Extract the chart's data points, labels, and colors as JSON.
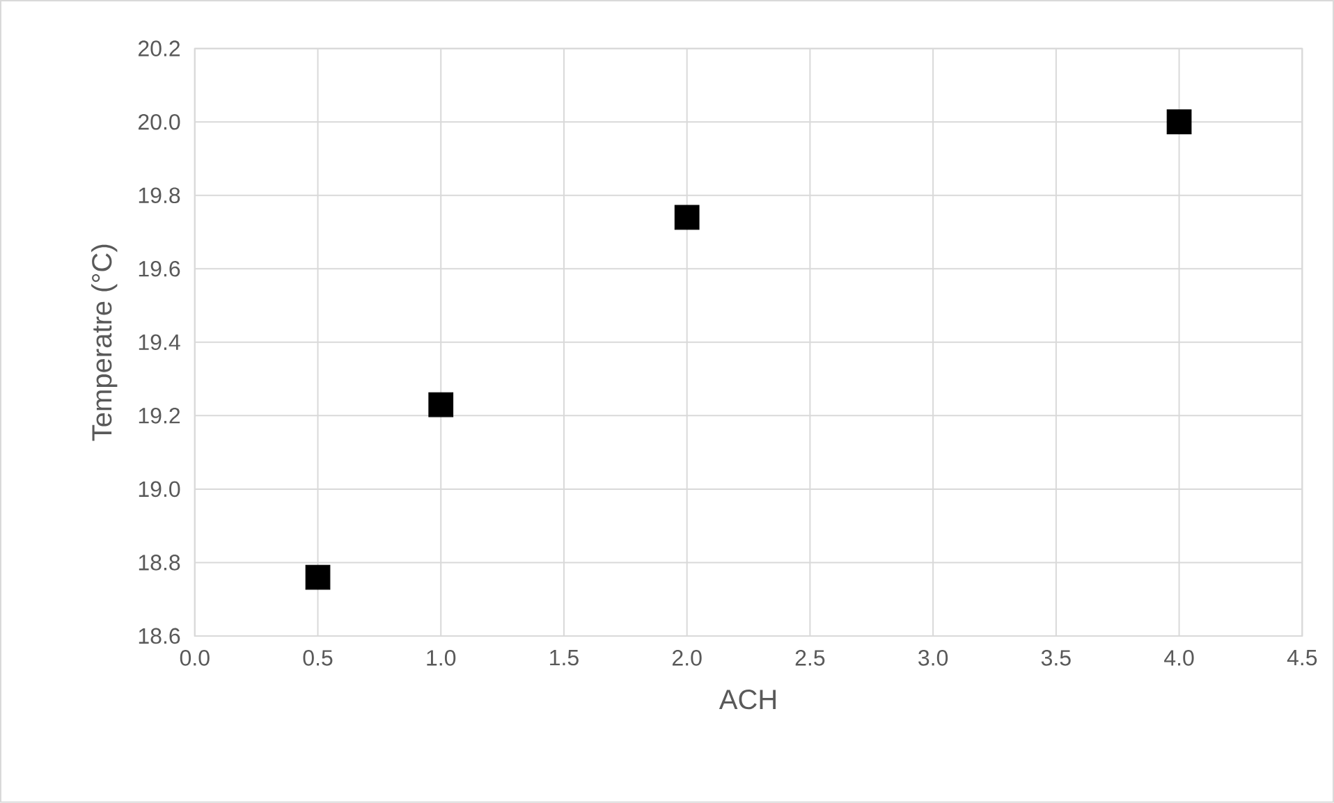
{
  "chart_data": {
    "type": "scatter",
    "xlabel": "ACH",
    "ylabel": "Temperatre (°C)",
    "x": [
      0.5,
      1.0,
      2.0,
      4.0
    ],
    "series": [
      {
        "color": "#000000",
        "values": [
          18.76,
          19.23,
          19.74,
          20.0
        ]
      }
    ],
    "xlim": [
      0.0,
      4.5
    ],
    "ylim": [
      18.6,
      20.2
    ],
    "xticks": [
      {
        "value": 0.0,
        "label": "0.0"
      },
      {
        "value": 0.5,
        "label": "0.5"
      },
      {
        "value": 1.0,
        "label": "1.0"
      },
      {
        "value": 1.5,
        "label": "1.5"
      },
      {
        "value": 2.0,
        "label": "2.0"
      },
      {
        "value": 2.5,
        "label": "2.5"
      },
      {
        "value": 3.0,
        "label": "3.0"
      },
      {
        "value": 3.5,
        "label": "3.5"
      },
      {
        "value": 4.0,
        "label": "4.0"
      },
      {
        "value": 4.5,
        "label": "4.5"
      }
    ],
    "yticks": [
      {
        "value": 18.6,
        "label": "18.6"
      },
      {
        "value": 18.8,
        "label": "18.8"
      },
      {
        "value": 19.0,
        "label": "19.0"
      },
      {
        "value": 19.2,
        "label": "19.2"
      },
      {
        "value": 19.4,
        "label": "19.4"
      },
      {
        "value": 19.6,
        "label": "19.6"
      },
      {
        "value": 19.8,
        "label": "19.8"
      },
      {
        "value": 20.0,
        "label": "20.0"
      },
      {
        "value": 20.2,
        "label": "20.2"
      }
    ],
    "grid": true,
    "marker": "square"
  }
}
